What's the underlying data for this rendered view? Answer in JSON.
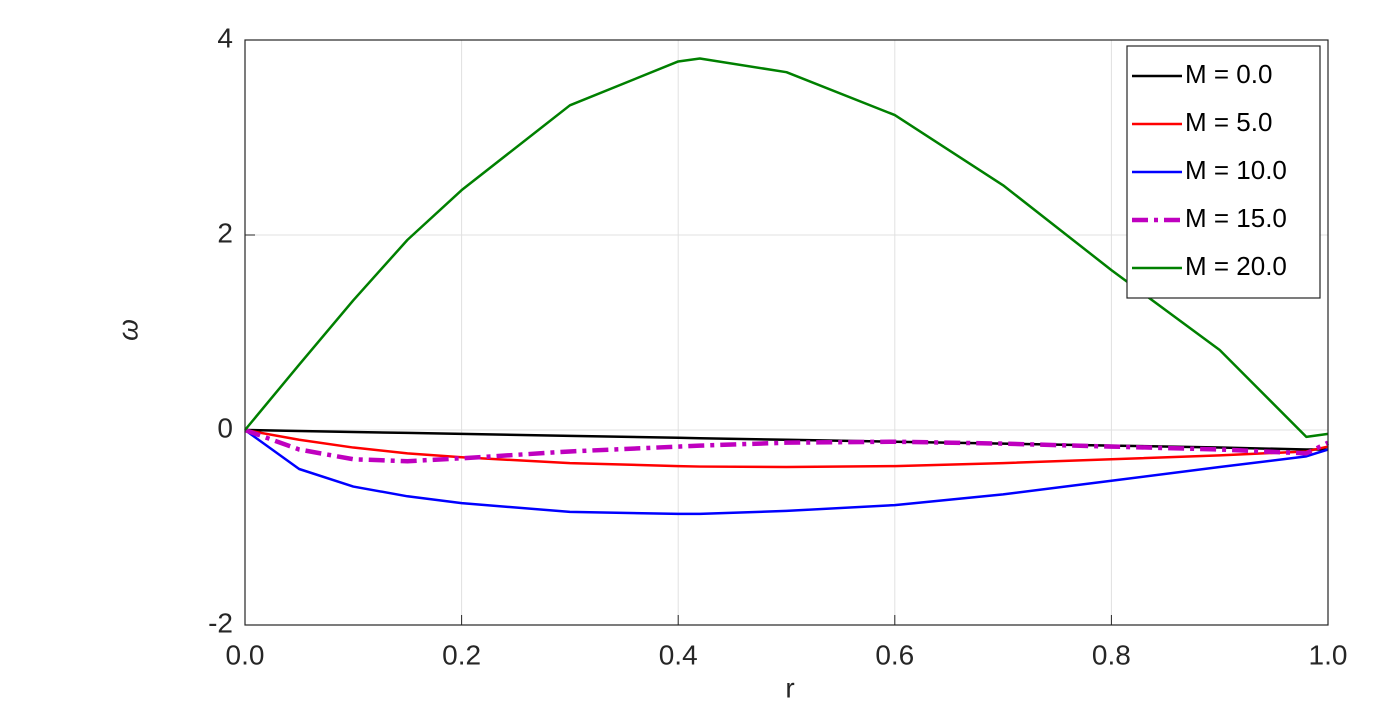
{
  "chart_data": {
    "type": "line",
    "x": [
      0,
      0.05,
      0.1,
      0.15,
      0.2,
      0.3,
      0.4,
      0.42,
      0.5,
      0.6,
      0.7,
      0.8,
      0.9,
      0.98,
      1.0
    ],
    "series": [
      {
        "name": "M = 0.0",
        "color": "#000000",
        "style": "solid",
        "values": [
          0,
          -0.01,
          -0.02,
          -0.03,
          -0.04,
          -0.06,
          -0.08,
          -0.085,
          -0.1,
          -0.12,
          -0.14,
          -0.16,
          -0.18,
          -0.2,
          -0.2
        ]
      },
      {
        "name": "M = 5.0",
        "color": "#ff0000",
        "style": "solid",
        "values": [
          0,
          -0.1,
          -0.18,
          -0.24,
          -0.28,
          -0.34,
          -0.37,
          -0.375,
          -0.38,
          -0.37,
          -0.34,
          -0.3,
          -0.26,
          -0.22,
          -0.17
        ]
      },
      {
        "name": "M = 10.0",
        "color": "#0000ff",
        "style": "solid",
        "values": [
          0,
          -0.4,
          -0.58,
          -0.68,
          -0.75,
          -0.84,
          -0.86,
          -0.86,
          -0.83,
          -0.77,
          -0.66,
          -0.52,
          -0.38,
          -0.27,
          -0.2
        ]
      },
      {
        "name": "M = 15.0",
        "color": "#bf00bf",
        "style": "dashdot",
        "values": [
          0,
          -0.2,
          -0.3,
          -0.32,
          -0.29,
          -0.22,
          -0.17,
          -0.16,
          -0.13,
          -0.12,
          -0.14,
          -0.17,
          -0.2,
          -0.24,
          -0.13
        ]
      },
      {
        "name": "M = 20.0",
        "color": "#008000",
        "style": "solid",
        "values": [
          0,
          0.67,
          1.33,
          1.95,
          2.46,
          3.33,
          3.78,
          3.81,
          3.67,
          3.23,
          2.51,
          1.64,
          0.82,
          -0.07,
          -0.04
        ]
      }
    ],
    "xlabel": "r",
    "ylabel": "ω",
    "xlim": [
      0,
      1
    ],
    "ylim": [
      -2,
      4
    ],
    "xticks": [
      {
        "value": 0,
        "label": "0.0"
      },
      0.2,
      0.4,
      0.6,
      0.8,
      {
        "value": 1,
        "label": "1.0"
      }
    ],
    "yticks": [
      -2,
      0,
      2,
      4
    ],
    "grid": true,
    "legend": "top-right"
  }
}
